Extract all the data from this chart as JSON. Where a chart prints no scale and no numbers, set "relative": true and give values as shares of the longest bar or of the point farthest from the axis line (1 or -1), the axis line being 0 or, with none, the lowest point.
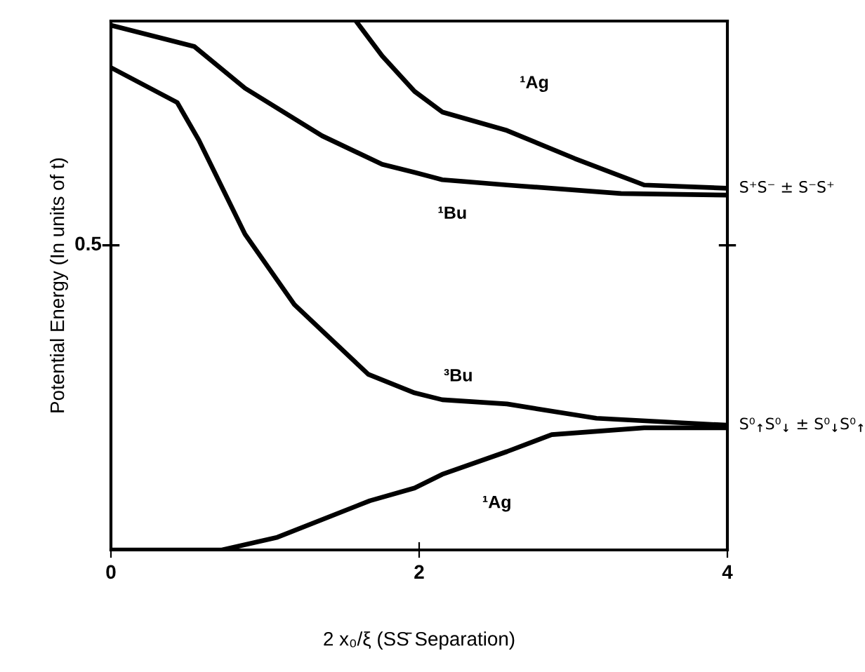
{
  "chart_data": {
    "type": "line",
    "relative": true,
    "xlabel": "2 x₀/ξ (SS̄ Separation)",
    "ylabel": "Potential Energy (In units of t)",
    "xlim": [
      0,
      4
    ],
    "xticks": [
      0,
      2,
      4
    ],
    "line_style": "solid",
    "grid": false,
    "legend": false,
    "series": [
      {
        "color": "#000000",
        "x": [
          0,
          0.72,
          1.08,
          1.68,
          1.97,
          2.15,
          2.57,
          2.86,
          3.46,
          3.99
        ],
        "values": [
          0,
          0,
          0.024,
          0.093,
          0.117,
          0.143,
          0.186,
          0.218,
          0.231,
          0.231
        ]
      },
      {
        "color": "#000000",
        "x": [
          0,
          0.43,
          0.57,
          0.87,
          1.19,
          1.67,
          1.97,
          2.15,
          2.57,
          3.15,
          3.99
        ],
        "values": [
          0.912,
          0.846,
          0.775,
          0.597,
          0.464,
          0.332,
          0.297,
          0.284,
          0.276,
          0.249,
          0.236
        ]
      },
      {
        "color": "#000000",
        "x": [
          0,
          0.54,
          0.87,
          1.37,
          1.76,
          1.97,
          2.15,
          2.57,
          3.31,
          3.99
        ],
        "values": [
          0.992,
          0.952,
          0.873,
          0.783,
          0.729,
          0.714,
          0.7,
          0.69,
          0.674,
          0.671
        ]
      },
      {
        "color": "#000000",
        "x": [
          1.59,
          1.76,
          1.97,
          2.15,
          2.57,
          3.01,
          3.46,
          3.99
        ],
        "values": [
          1.0,
          0.934,
          0.867,
          0.828,
          0.793,
          0.74,
          0.69,
          0.684
        ]
      }
    ],
    "annotations": [
      "0.5",
      {
        "text": "¹Ag",
        "x": 2.57,
        "y": 0.793
      },
      {
        "text": "¹Bu",
        "x": 2.57,
        "y": 0.69
      },
      {
        "text": "³Bu",
        "x": 2.57,
        "y": 0.276
      },
      {
        "text": "¹Ag",
        "x": 2.15,
        "y": 0.143
      },
      {
        "text": "S⁺S⁻ ± S⁻S⁺",
        "x": 3.99,
        "y": 0.684
      },
      {
        "text": "S⁰$_{↑}$S⁰$_{↓}$ ± S⁰$_{↓}$S⁰$_{↑}$",
        "x": 3.99,
        "y": 0.236
      }
    ]
  }
}
